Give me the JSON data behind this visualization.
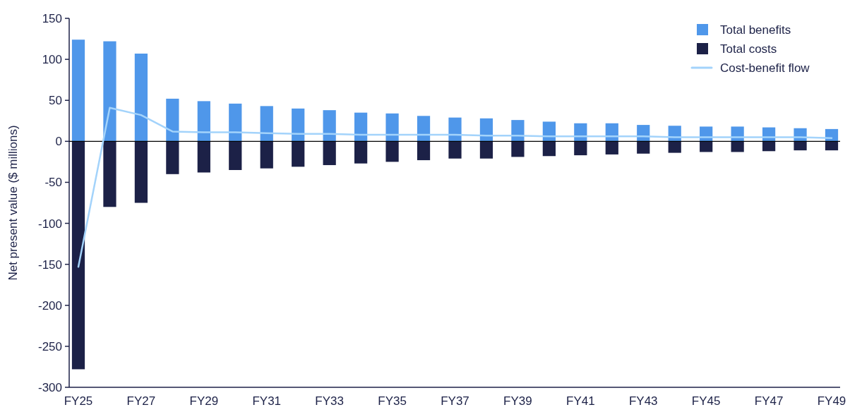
{
  "chart_data": {
    "type": "bar",
    "ylabel": "Net present value ($ millions)",
    "categories": [
      "FY25",
      null,
      "FY27",
      null,
      "FY29",
      null,
      "FY31",
      null,
      "FY33",
      null,
      "FY35",
      null,
      "FY37",
      null,
      "FY39",
      null,
      "FY41",
      null,
      "FY43",
      null,
      "FY45",
      null,
      "FY47",
      null,
      "FY49"
    ],
    "series": [
      {
        "name": "Total benefits",
        "color": "#4f97ea",
        "values": [
          124,
          122,
          107,
          52,
          49,
          46,
          43,
          40,
          38,
          35,
          34,
          31,
          29,
          28,
          26,
          24,
          22,
          22,
          20,
          19,
          18,
          18,
          17,
          16,
          15
        ]
      },
      {
        "name": "Total costs",
        "color": "#1c2147",
        "values": [
          -278,
          -80,
          -75,
          -40,
          -38,
          -35,
          -33,
          -31,
          -29,
          -27,
          -25,
          -23,
          -21,
          -21,
          -19,
          -18,
          -17,
          -16,
          -15,
          -14,
          -13,
          -13,
          -12,
          -11,
          -11
        ]
      },
      {
        "name": "Cost-benefit flow",
        "type": "line",
        "color": "#a3d3fb",
        "values": [
          -153,
          41,
          32,
          12,
          11,
          11,
          10,
          9,
          9,
          8,
          8,
          8,
          8,
          7,
          7,
          6,
          6,
          6,
          6,
          5,
          5,
          5,
          5,
          5,
          4
        ]
      }
    ],
    "stacked": true,
    "ylim": [
      -300,
      150
    ],
    "yticks": [
      -300,
      -250,
      -200,
      -150,
      -100,
      -50,
      0,
      50,
      100,
      150
    ],
    "ref_lines": [
      {
        "axis": "y",
        "value": 0,
        "color": "#000000"
      }
    ],
    "grid": false,
    "legend": "top right"
  }
}
